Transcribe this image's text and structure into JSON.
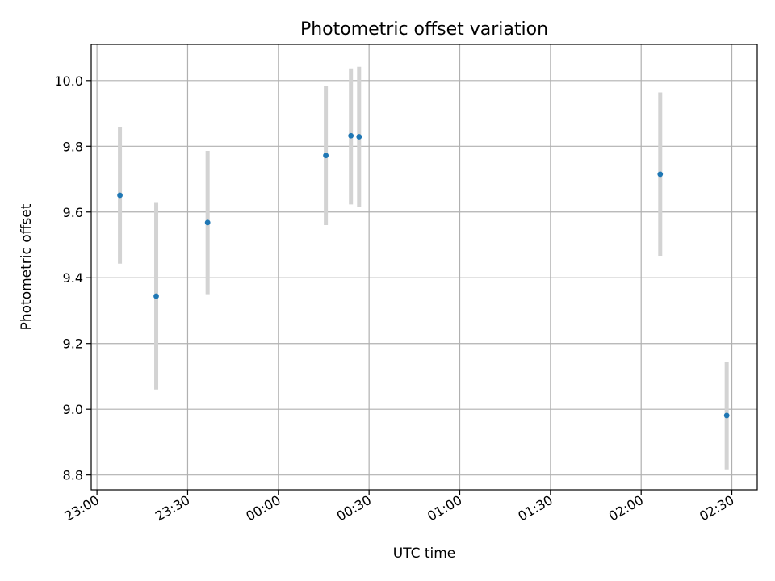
{
  "chart_data": {
    "type": "scatter",
    "title": "Photometric offset variation",
    "xlabel": "UTC time",
    "ylabel": "Photometric offset",
    "x_unit": "minutes after 23:00 UTC",
    "xlim": [
      -1.9,
      218.4
    ],
    "ylim": [
      8.755,
      10.11
    ],
    "x_ticks": [
      {
        "label": "23:00",
        "value": 0
      },
      {
        "label": "23:30",
        "value": 30
      },
      {
        "label": "00:00",
        "value": 60
      },
      {
        "label": "00:30",
        "value": 90
      },
      {
        "label": "01:00",
        "value": 120
      },
      {
        "label": "01:30",
        "value": 150
      },
      {
        "label": "02:00",
        "value": 180
      },
      {
        "label": "02:30",
        "value": 210
      }
    ],
    "y_ticks": [
      {
        "label": "8.8",
        "value": 8.8
      },
      {
        "label": "9.0",
        "value": 9.0
      },
      {
        "label": "9.2",
        "value": 9.2
      },
      {
        "label": "9.4",
        "value": 9.4
      },
      {
        "label": "9.6",
        "value": 9.6
      },
      {
        "label": "9.8",
        "value": 9.8
      },
      {
        "label": "10.0",
        "value": 10.0
      }
    ],
    "grid": true,
    "series": [
      {
        "color": "#1f77b4",
        "errorbar_color": "#d3d3d3",
        "points": [
          {
            "time": "23:08",
            "x": 7.6,
            "y": 9.651,
            "ylow": 9.443,
            "yhigh": 9.858
          },
          {
            "time": "23:20",
            "x": 19.6,
            "y": 9.344,
            "ylow": 9.06,
            "yhigh": 9.63
          },
          {
            "time": "23:37",
            "x": 36.6,
            "y": 9.568,
            "ylow": 9.35,
            "yhigh": 9.786
          },
          {
            "time": "00:16",
            "x": 75.7,
            "y": 9.772,
            "ylow": 9.56,
            "yhigh": 9.983
          },
          {
            "time": "00:24",
            "x": 84.0,
            "y": 9.832,
            "ylow": 9.623,
            "yhigh": 10.037
          },
          {
            "time": "00:26",
            "x": 86.7,
            "y": 9.829,
            "ylow": 9.616,
            "yhigh": 10.042
          },
          {
            "time": "02:06",
            "x": 186.3,
            "y": 9.715,
            "ylow": 9.467,
            "yhigh": 9.964
          },
          {
            "time": "02:28",
            "x": 208.3,
            "y": 8.981,
            "ylow": 8.817,
            "yhigh": 9.143
          }
        ]
      }
    ]
  }
}
